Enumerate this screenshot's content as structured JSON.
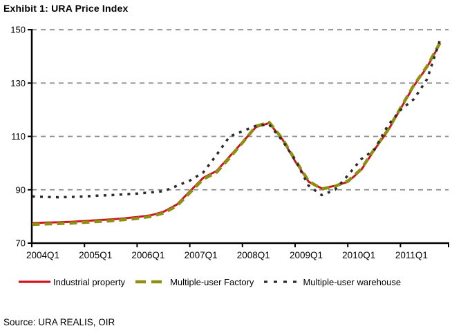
{
  "title": "Exhibit 1: URA Price Index",
  "source": "Source: URA REALIS, OIR",
  "chart_data": {
    "type": "line",
    "title": "Exhibit 1: URA Price Index",
    "x_frequency": "quarterly",
    "x_categories": [
      "2004Q1",
      "2004Q2",
      "2004Q3",
      "2004Q4",
      "2005Q1",
      "2005Q2",
      "2005Q3",
      "2005Q4",
      "2006Q1",
      "2006Q2",
      "2006Q3",
      "2006Q4",
      "2007Q1",
      "2007Q2",
      "2007Q3",
      "2007Q4",
      "2008Q1",
      "2008Q2",
      "2008Q3",
      "2008Q4",
      "2009Q1",
      "2009Q2",
      "2009Q3",
      "2009Q4",
      "2010Q1",
      "2010Q2",
      "2010Q3",
      "2010Q4",
      "2011Q1",
      "2011Q2",
      "2011Q3",
      "2011Q4"
    ],
    "x_tick_labels": [
      "2004Q1",
      "2005Q1",
      "2006Q1",
      "2007Q1",
      "2008Q1",
      "2009Q1",
      "2010Q1",
      "2011Q1"
    ],
    "ylim": [
      70,
      150
    ],
    "yticks": [
      70,
      90,
      110,
      130,
      150
    ],
    "grid": "horizontal-dashed",
    "gridline_color": "#8c8c8c",
    "axis_color": "#000000",
    "legend_position": "bottom",
    "series": [
      {
        "name": "Industrial property",
        "style": "solid",
        "color": "#cf1420",
        "values": [
          77.5,
          77.7,
          77.8,
          78.0,
          78.3,
          78.6,
          78.9,
          79.3,
          79.8,
          80.4,
          81.8,
          84.5,
          89.5,
          94.5,
          97.0,
          102.5,
          108.0,
          113.5,
          115.0,
          109.0,
          100.5,
          93.0,
          90.5,
          91.5,
          93.0,
          97.5,
          105.0,
          112.0,
          120.5,
          129.0,
          136.0,
          145.0
        ]
      },
      {
        "name": "Multiple-user Factory",
        "style": "dashed",
        "color": "#8f8f12",
        "values": [
          77.0,
          77.2,
          77.3,
          77.5,
          77.8,
          78.1,
          78.4,
          78.8,
          79.3,
          80.0,
          81.3,
          84.0,
          89.0,
          94.0,
          96.5,
          102.0,
          107.8,
          113.8,
          115.3,
          109.2,
          101.0,
          93.2,
          90.3,
          91.3,
          93.3,
          97.8,
          105.3,
          112.3,
          120.8,
          129.3,
          136.3,
          145.3
        ]
      },
      {
        "name": "Multiple-user warehouse",
        "style": "dotted",
        "color": "#2b2b2b",
        "values": [
          87.5,
          87.3,
          87.2,
          87.3,
          87.5,
          87.8,
          88.0,
          88.3,
          88.6,
          89.0,
          89.5,
          91.5,
          93.5,
          96.5,
          103.0,
          110.0,
          112.0,
          114.0,
          114.5,
          108.5,
          101.0,
          91.5,
          88.0,
          90.0,
          95.5,
          101.5,
          105.0,
          114.0,
          120.0,
          124.0,
          131.5,
          146.5
        ]
      }
    ]
  }
}
